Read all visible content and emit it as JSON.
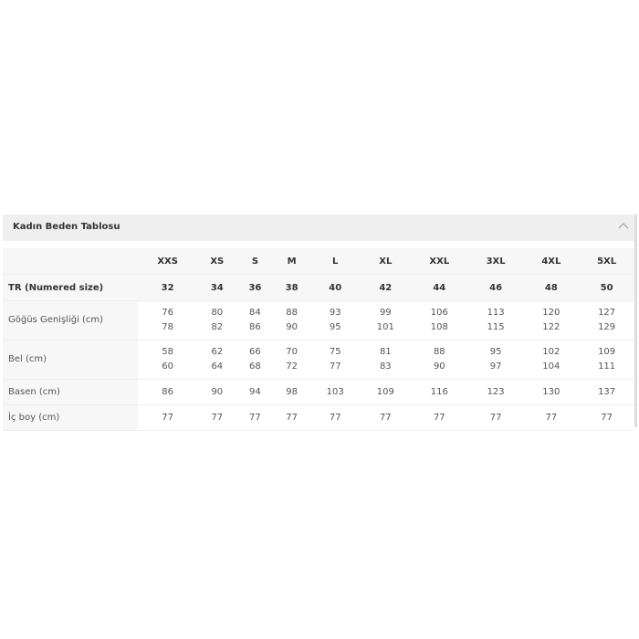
{
  "panel": {
    "title": "Kadın Beden Tablosu",
    "toggle_icon": "chevron-up-icon"
  },
  "table": {
    "sizes": [
      "XXS",
      "XS",
      "S",
      "M",
      "L",
      "XL",
      "XXL",
      "3XL",
      "4XL",
      "5XL"
    ],
    "rows": [
      {
        "label": "TR (Numered size)",
        "values": [
          "32",
          "34",
          "36",
          "38",
          "40",
          "42",
          "44",
          "46",
          "48",
          "50"
        ]
      },
      {
        "label": "Göğüs Genişliği (cm)",
        "values": [
          [
            "76",
            "78"
          ],
          [
            "80",
            "82"
          ],
          [
            "84",
            "86"
          ],
          [
            "88",
            "90"
          ],
          [
            "93",
            "95"
          ],
          [
            "99",
            "101"
          ],
          [
            "106",
            "108"
          ],
          [
            "113",
            "115"
          ],
          [
            "120",
            "122"
          ],
          [
            "127",
            "129"
          ]
        ]
      },
      {
        "label": "Bel (cm)",
        "values": [
          [
            "58",
            "60"
          ],
          [
            "62",
            "64"
          ],
          [
            "66",
            "68"
          ],
          [
            "70",
            "72"
          ],
          [
            "75",
            "77"
          ],
          [
            "81",
            "83"
          ],
          [
            "88",
            "90"
          ],
          [
            "95",
            "97"
          ],
          [
            "102",
            "104"
          ],
          [
            "109",
            "111"
          ]
        ]
      },
      {
        "label": "Basen (cm)",
        "values": [
          "86",
          "90",
          "94",
          "98",
          "103",
          "109",
          "116",
          "123",
          "130",
          "137"
        ]
      },
      {
        "label": "İç boy (cm)",
        "values": [
          "77",
          "77",
          "77",
          "77",
          "77",
          "77",
          "77",
          "77",
          "77",
          "77"
        ]
      }
    ]
  }
}
